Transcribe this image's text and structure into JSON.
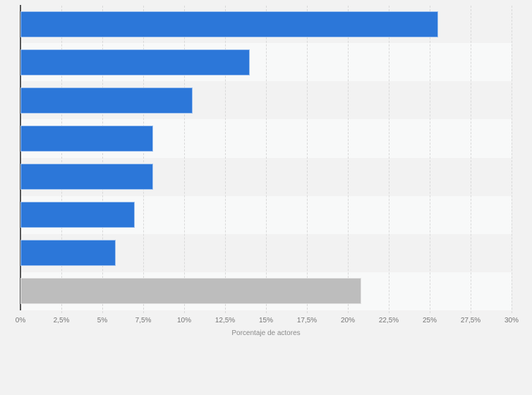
{
  "page": {
    "background_color": "#f2f2f2"
  },
  "chart_data": {
    "type": "bar",
    "orientation": "horizontal",
    "title": "",
    "xlabel": "Porcentaje de actores",
    "ylabel": "",
    "categories": [
      "",
      "",
      "",
      "",
      "",
      "",
      "",
      ""
    ],
    "values": [
      25.5,
      14,
      10.5,
      8.1,
      8.1,
      7,
      5.8,
      20.8
    ],
    "bar_colors": [
      "#2c77d9",
      "#2c77d9",
      "#2c77d9",
      "#2c77d9",
      "#2c77d9",
      "#2c77d9",
      "#2c77d9",
      "#bdbdbd"
    ],
    "xlim": [
      0,
      30
    ],
    "x_tick_step": 2.5,
    "x_tick_labels": [
      "0%",
      "2,5%",
      "5%",
      "7,5%",
      "10%",
      "12,5%",
      "15%",
      "17,5%",
      "20%",
      "22,5%",
      "25%",
      "27,5%",
      "30%"
    ],
    "grid": "vertical-dashed",
    "legend": "none",
    "row_stripes": true
  },
  "colors": {
    "bar_blue": "#2c77d9",
    "bar_gray": "#bdbdbd",
    "axis_line": "#565656",
    "gridline": "#d9d9d9",
    "tick_text": "#757575",
    "axis_title_text": "#8a8a8a",
    "stripe_dark": "#f2f2f2",
    "stripe_light": "#f8f9f9"
  }
}
